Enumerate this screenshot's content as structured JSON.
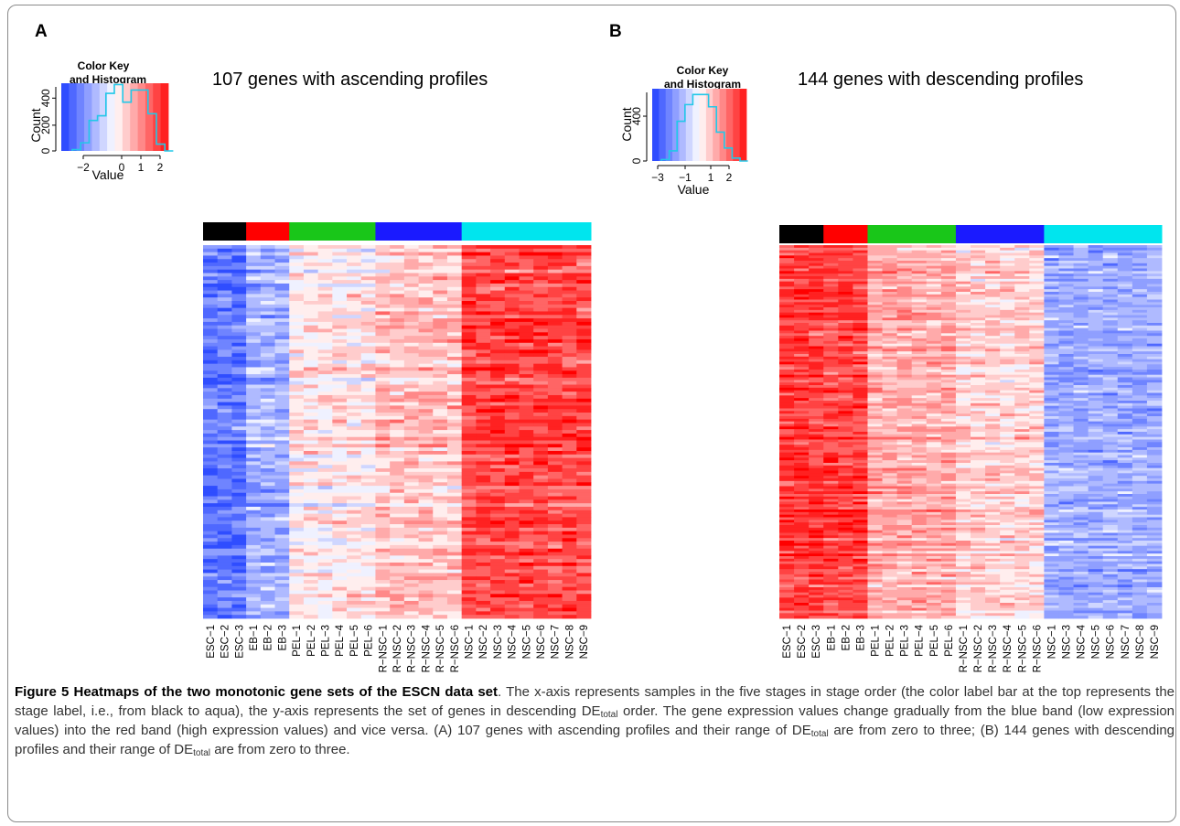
{
  "colors": {
    "blue": "#1f3fff",
    "red": "#ff1010",
    "hist_line": "#22c8e8",
    "stage_colors": [
      "#000000",
      "#ff0000",
      "#19c619",
      "#1a1aff",
      "#00e5ee"
    ]
  },
  "panels": [
    {
      "letter": "A",
      "title": "107 genes with ascending profiles",
      "key_title_line1": "Color Key",
      "key_title_line2": "and Histogram",
      "key_ylabel": "Count",
      "key_xlabel": "Value",
      "key_yticks": [
        "0",
        "200",
        "400"
      ],
      "key_xticks": [
        "−2",
        "0",
        "1",
        "2"
      ],
      "columns": [
        "ESC−1",
        "ESC−2",
        "ESC−3",
        "EB−1",
        "EB−2",
        "EB−3",
        "PEL−1",
        "PEL−2",
        "PEL−3",
        "PEL−4",
        "PEL−5",
        "PEL−6",
        "R−NSC−1",
        "R−NSC−2",
        "R−NSC−3",
        "R−NSC−4",
        "R−NSC−5",
        "R−NSC−6",
        "NSC−1",
        "NSC−2",
        "NSC−3",
        "NSC−4",
        "NSC−5",
        "NSC−6",
        "NSC−7",
        "NSC−8",
        "NSC−9"
      ]
    },
    {
      "letter": "B",
      "title": "144 genes with descending profiles",
      "key_title_line1": "Color Key",
      "key_title_line2": "and Histogram",
      "key_ylabel": "Count",
      "key_xlabel": "Value",
      "key_yticks": [
        "0",
        "400"
      ],
      "key_xticks": [
        "−3",
        "−1",
        "1",
        "2"
      ],
      "columns": [
        "ESC−1",
        "ESC−2",
        "ESC−3",
        "EB−1",
        "EB−2",
        "EB−3",
        "PEL−1",
        "PEL−2",
        "PEL−3",
        "PEL−4",
        "PEL−5",
        "PEL−6",
        "R−NSC−1",
        "R−NSC−2",
        "R−NSC−3",
        "R−NSC−4",
        "R−NSC−5",
        "R−NSC−6",
        "NSC−1",
        "NSC−3",
        "NSC−4",
        "NSC−5",
        "NSC−6",
        "NSC−7",
        "NSC−8",
        "NSC−9"
      ]
    }
  ],
  "chart_data": [
    {
      "type": "heatmap",
      "title": "107 genes with ascending profiles",
      "rows": 107,
      "columns": [
        "ESC−1",
        "ESC−2",
        "ESC−3",
        "EB−1",
        "EB−2",
        "EB−3",
        "PEL−1",
        "PEL−2",
        "PEL−3",
        "PEL−4",
        "PEL−5",
        "PEL−6",
        "R−NSC−1",
        "R−NSC−2",
        "R−NSC−3",
        "R−NSC−4",
        "R−NSC−5",
        "R−NSC−6",
        "NSC−1",
        "NSC−2",
        "NSC−3",
        "NSC−4",
        "NSC−5",
        "NSC−6",
        "NSC−7",
        "NSC−8",
        "NSC−9"
      ],
      "stage_mean_values": [
        -1.8,
        -1.0,
        0.2,
        0.6,
        1.9
      ],
      "color_key_range": [
        -2.5,
        2.5
      ]
    },
    {
      "type": "heatmap",
      "title": "144 genes with descending profiles",
      "rows": 144,
      "columns": [
        "ESC−1",
        "ESC−2",
        "ESC−3",
        "EB−1",
        "EB−2",
        "EB−3",
        "PEL−1",
        "PEL−2",
        "PEL−3",
        "PEL−4",
        "PEL−5",
        "PEL−6",
        "R−NSC−1",
        "R−NSC−2",
        "R−NSC−3",
        "R−NSC−4",
        "R−NSC−5",
        "R−NSC−6",
        "NSC−1",
        "NSC−3",
        "NSC−4",
        "NSC−5",
        "NSC−6",
        "NSC−7",
        "NSC−8",
        "NSC−9"
      ],
      "stage_mean_values": [
        2.0,
        1.9,
        0.7,
        0.3,
        -1.4
      ],
      "color_key_range": [
        -3,
        2.5
      ]
    }
  ],
  "caption": {
    "bold": "Figure 5 Heatmaps of the two monotonic gene sets of the ESCN data set",
    "p1": ". The x-axis represents samples in the five stages in stage order (the color label bar at the top represents the stage label, i.e., from black to aqua), the y-axis represents the set of genes in descending DE",
    "sub": "total",
    "p2": " order. The gene expression values change gradually from the blue band (low expression values) into the red band (high expression values) and vice versa. (A) 107 genes with ascending profiles and their range of DE",
    "p3": " are from zero to three; (B) 144 genes with descending profiles and their range of DE",
    "p4": " are from zero to three."
  }
}
